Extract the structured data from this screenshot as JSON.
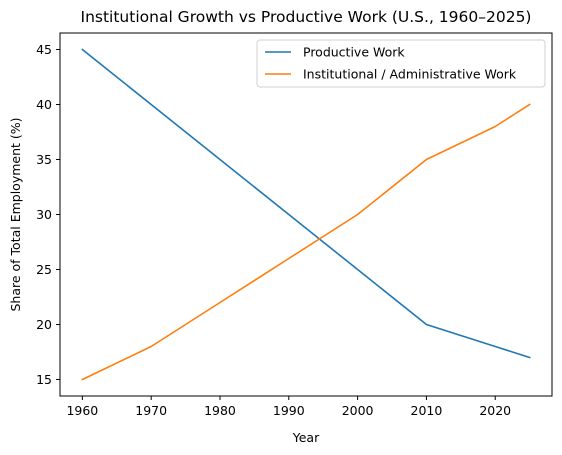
{
  "chart_data": {
    "type": "line",
    "title": "Institutional Growth vs Productive Work (U.S., 1960–2025)",
    "xlabel": "Year",
    "ylabel": "Share of Total Employment (%)",
    "x": [
      1960,
      1970,
      1980,
      1990,
      2000,
      2010,
      2020,
      2025
    ],
    "series": [
      {
        "name": "Productive Work",
        "color": "#1f77b4",
        "values": [
          45,
          40,
          35,
          30,
          25,
          20,
          18,
          17
        ]
      },
      {
        "name": "Institutional / Administrative Work",
        "color": "#ff7f0e",
        "values": [
          15,
          18,
          22,
          26,
          30,
          35,
          38,
          40
        ]
      }
    ],
    "xlim": [
      1956.75,
      2028.25
    ],
    "ylim": [
      13.5,
      46.5
    ],
    "xticks": [
      1960,
      1970,
      1980,
      1990,
      2000,
      2010,
      2020
    ],
    "yticks": [
      15,
      20,
      25,
      30,
      35,
      40,
      45
    ],
    "grid": false,
    "legend_position": "top-right"
  }
}
